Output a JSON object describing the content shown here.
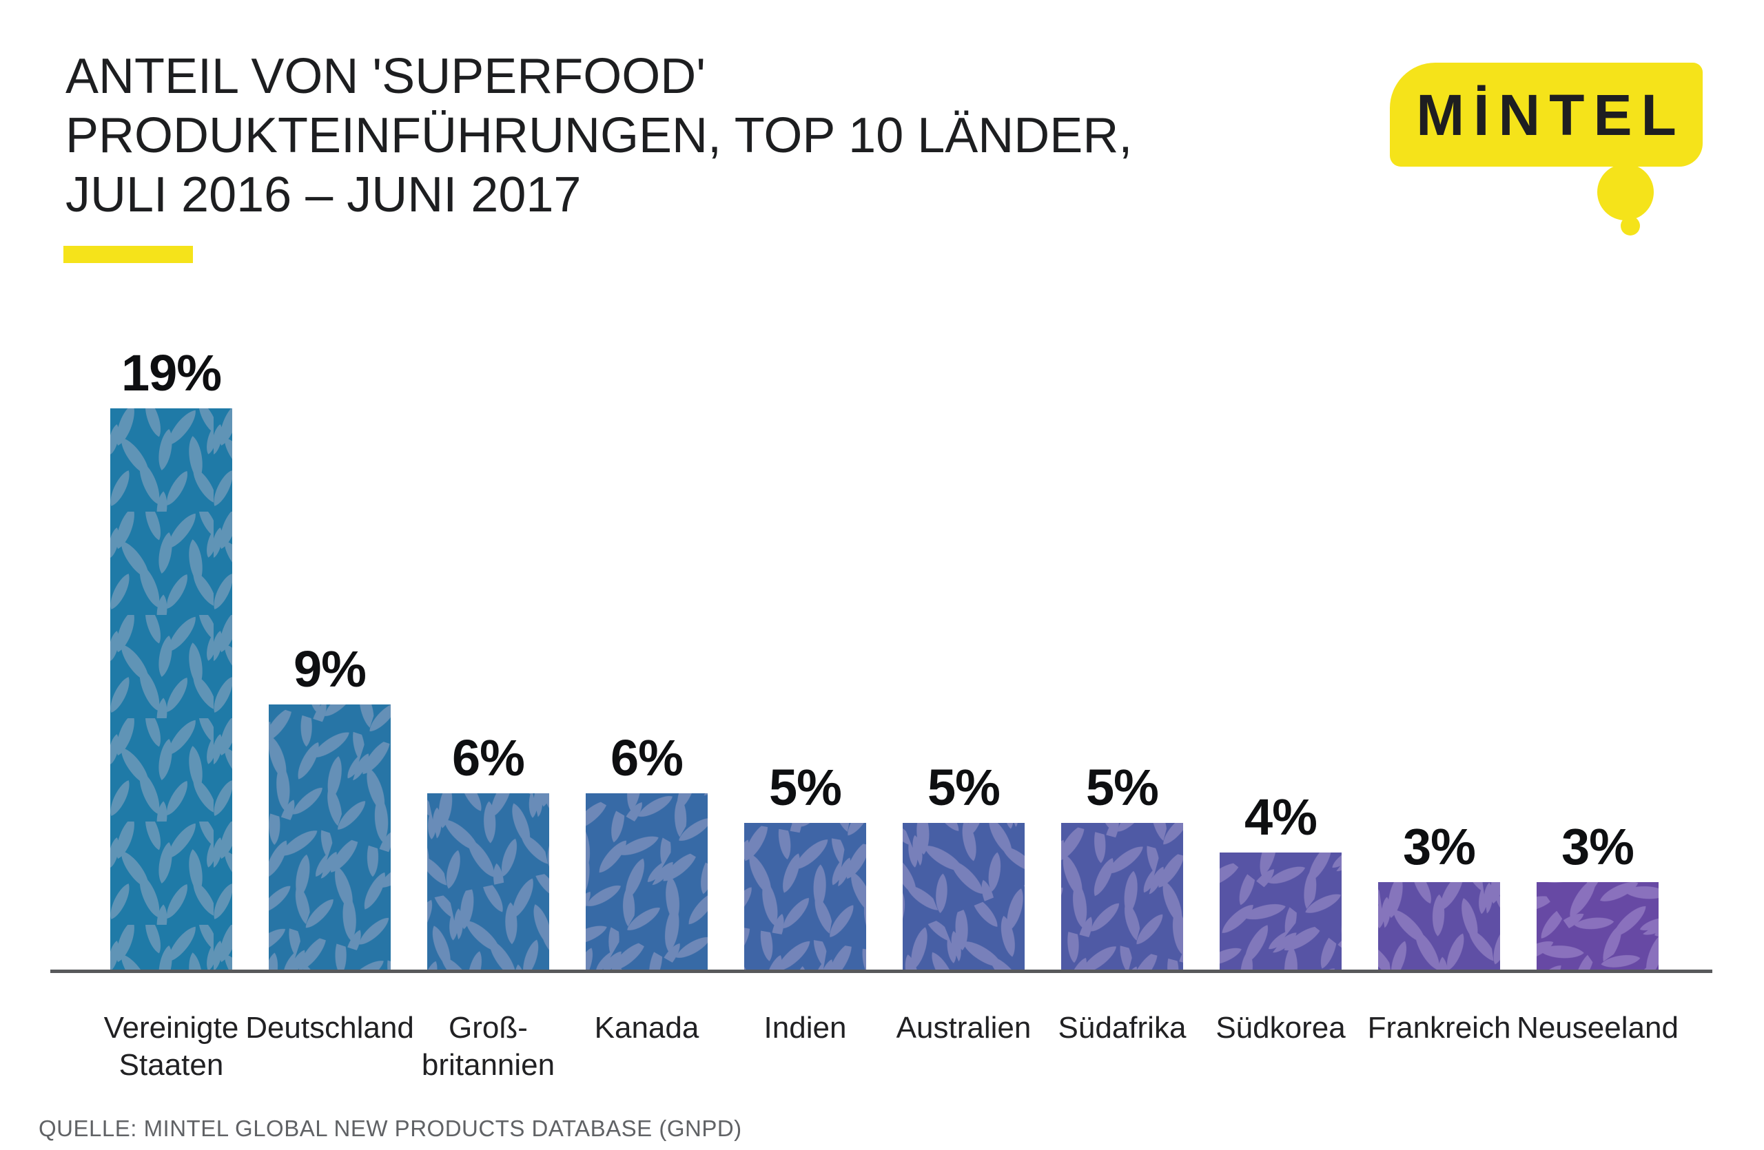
{
  "header": {
    "title_lines": [
      "ANTEIL VON 'SUPERFOOD'",
      "PRODUKTEINFÜHRUNGEN, TOP 10 LÄNDER,",
      "JULI 2016 – JUNI 2017"
    ],
    "accent_color": "#F5E31A",
    "title_color": "#1d1e20"
  },
  "logo": {
    "text": "MİNTEL",
    "bubble_color": "#F5E31A",
    "text_color": "#1e1e21"
  },
  "chart_data": {
    "type": "bar",
    "title": "Anteil von 'Superfood' Produkteinführungen, Top 10 Länder, Juli 2016 – Juni 2017",
    "unit": "%",
    "categories": [
      "Vereinigte Staaten",
      "Deutschland",
      "Großbritannien",
      "Kanada",
      "Indien",
      "Australien",
      "Südafrika",
      "Südkorea",
      "Frankreich",
      "Neuseeland"
    ],
    "category_label_lines": [
      [
        "Vereinigte",
        "Staaten"
      ],
      [
        "Deutschland"
      ],
      [
        "Groß-",
        "britannien"
      ],
      [
        "Kanada"
      ],
      [
        "Indien"
      ],
      [
        "Australien"
      ],
      [
        "Südafrika"
      ],
      [
        "Südkorea"
      ],
      [
        "Frankreich"
      ],
      [
        "Neuseeland"
      ]
    ],
    "values": [
      19,
      9,
      6,
      6,
      5,
      5,
      5,
      4,
      3,
      3
    ],
    "value_labels": [
      "19%",
      "9%",
      "6%",
      "6%",
      "5%",
      "5%",
      "5%",
      "4%",
      "3%",
      "3%"
    ],
    "ylim": [
      0,
      20
    ],
    "grid": false,
    "legend": false,
    "axis_color": "#58595B",
    "bar_base_colors": [
      "#1F7AA7",
      "#2775A6",
      "#2F70A6",
      "#376AA6",
      "#3F65A6",
      "#475FA5",
      "#4F5AA5",
      "#5754A5",
      "#5F4FA5",
      "#6749A4"
    ],
    "bar_leaf_colors": [
      "#6094B6",
      "#6590B7",
      "#698CB8",
      "#6E88B8",
      "#7384B9",
      "#7880BA",
      "#7C7CBA",
      "#8178BB",
      "#8675BC",
      "#8A71BD"
    ]
  },
  "footer": {
    "source": "QUELLE: MINTEL GLOBAL NEW PRODUCTS DATABASE (GNPD)"
  }
}
